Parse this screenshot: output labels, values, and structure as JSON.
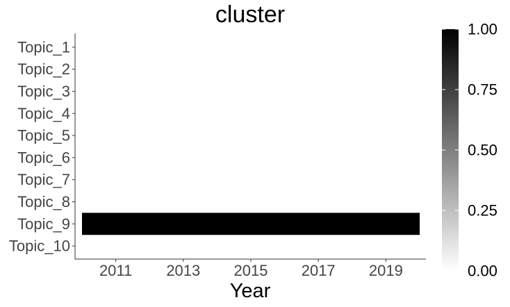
{
  "chart_data": {
    "type": "heatmap",
    "title": "cluster",
    "xlabel": "Year",
    "ylabel": "",
    "x_ticks": [
      2011,
      2013,
      2015,
      2017,
      2019
    ],
    "xlim": [
      2010,
      2020
    ],
    "y_categories": [
      "Topic_1",
      "Topic_2",
      "Topic_3",
      "Topic_4",
      "Topic_5",
      "Topic_6",
      "Topic_7",
      "Topic_8",
      "Topic_9",
      "Topic_10"
    ],
    "cells": [
      {
        "topic": "Topic_9",
        "x_start": 2010,
        "x_end": 2020,
        "value": 1.0
      }
    ],
    "colorbar": {
      "min": 0,
      "max": 1,
      "ticks": [
        0,
        0.25,
        0.5,
        0.75,
        1
      ],
      "tick_labels": [
        "0.00",
        "0.25",
        "0.50",
        "0.75",
        "1.00"
      ],
      "color_low": "#ffffff",
      "color_high": "#000000"
    },
    "grid": false,
    "legend_position": "right"
  }
}
